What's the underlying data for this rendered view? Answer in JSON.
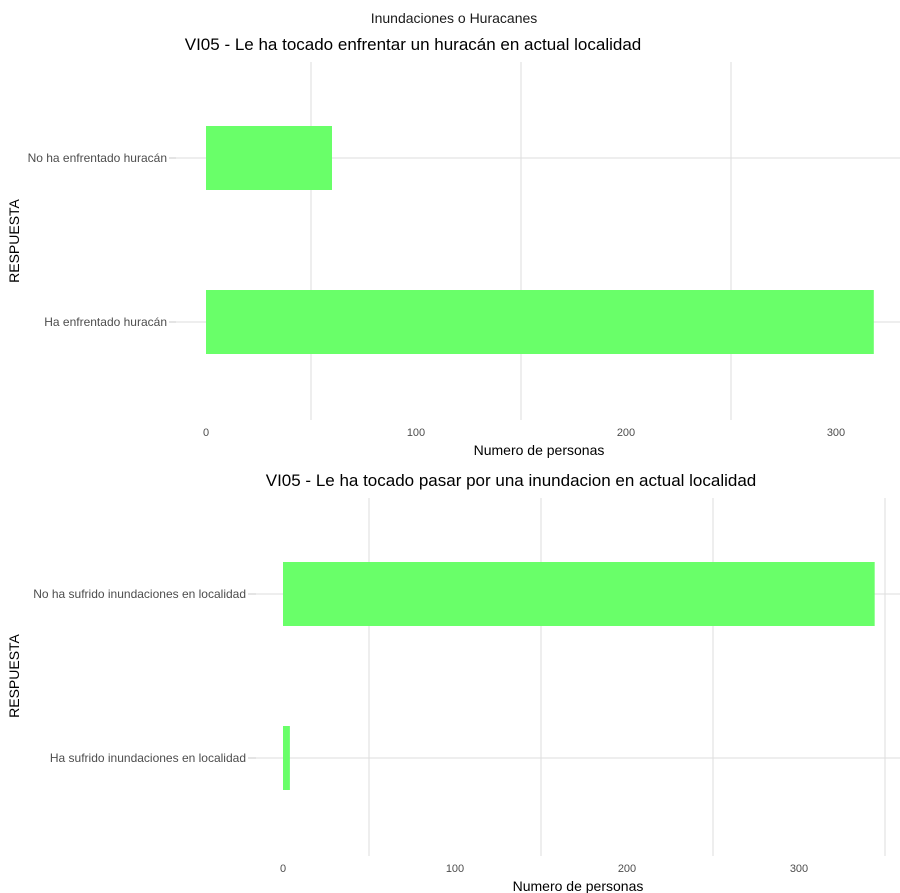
{
  "figure_title": "Inundaciones o Huracanes",
  "chart_data": [
    {
      "type": "bar",
      "orientation": "horizontal",
      "title": "VI05 - Le ha tocado enfrentar un huracán en actual localidad",
      "xlabel": "Numero de personas",
      "ylabel": "RESPUESTA",
      "categories": [
        "No ha enfrentado huracán",
        "Ha enfrentado huracán"
      ],
      "values": [
        60,
        318
      ],
      "xlim": [
        0,
        330
      ],
      "xticks": [
        0,
        100,
        200,
        300
      ],
      "bar_color": "#66ff66",
      "grid": true
    },
    {
      "type": "bar",
      "orientation": "horizontal",
      "title": "VI05 - Le ha tocado pasar por una inundacion en actual localidad",
      "xlabel": "Numero de personas",
      "ylabel": "RESPUESTA",
      "categories": [
        "No ha sufrido inundaciones en localidad",
        "Ha sufrido inundaciones en localidad"
      ],
      "values": [
        344,
        4
      ],
      "xlim": [
        0,
        360
      ],
      "xticks": [
        0,
        100,
        200,
        300
      ],
      "bar_color": "#66ff66",
      "grid": true
    }
  ]
}
